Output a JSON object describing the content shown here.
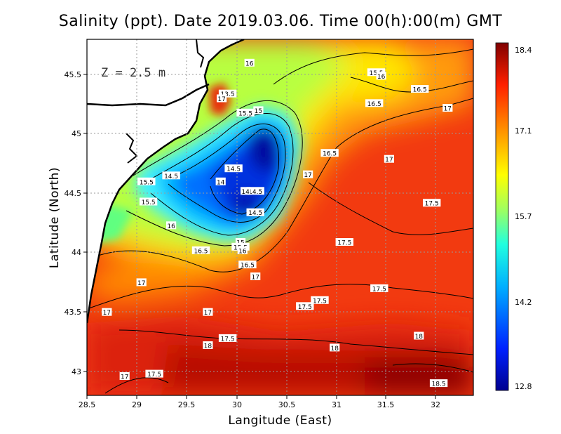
{
  "title": "Salinity (ppt). Date 2019.03.06. Time 00(h):00(m) GMT",
  "depth_label": "Z = 2.5 m",
  "chart_data": {
    "type": "heatmap",
    "title": "Salinity (ppt). Date 2019.03.06. Time 00(h):00(m) GMT",
    "xlabel": "Langitude (East)",
    "ylabel": "Latitude (North)",
    "xlim": [
      28.5,
      32.4
    ],
    "ylim": [
      42.8,
      45.8
    ],
    "x_ticks": [
      "28.5",
      "29",
      "29.5",
      "30",
      "30.5",
      "31",
      "31.5",
      "32"
    ],
    "y_ticks": [
      "43",
      "43.5",
      "44",
      "44.5",
      "45",
      "45.5"
    ],
    "colorbar": {
      "labels": [
        "18.4",
        "17.1",
        "15.7",
        "14.2",
        "12.8"
      ],
      "range": [
        12.8,
        18.4
      ]
    },
    "grid": true,
    "contour_labels": [
      {
        "lon": 29.1,
        "lat": 44.6,
        "value": "15.5"
      },
      {
        "lon": 29.35,
        "lat": 44.65,
        "value": "14.5"
      },
      {
        "lon": 29.85,
        "lat": 44.6,
        "value": "14"
      },
      {
        "lon": 29.98,
        "lat": 44.71,
        "value": "14.5"
      },
      {
        "lon": 30.2,
        "lat": 44.52,
        "value": "14.5"
      },
      {
        "lon": 30.2,
        "lat": 44.34,
        "value": "14.5"
      },
      {
        "lon": 30.1,
        "lat": 44.52,
        "value": "14"
      },
      {
        "lon": 29.12,
        "lat": 44.43,
        "value": "15.5"
      },
      {
        "lon": 29.35,
        "lat": 44.23,
        "value": "16"
      },
      {
        "lon": 30.05,
        "lat": 44.09,
        "value": "15"
      },
      {
        "lon": 30.05,
        "lat": 44.05,
        "value": "15.5"
      },
      {
        "lon": 30.07,
        "lat": 44.02,
        "value": "16"
      },
      {
        "lon": 29.65,
        "lat": 44.02,
        "value": "16.5"
      },
      {
        "lon": 30.12,
        "lat": 43.9,
        "value": "16.5"
      },
      {
        "lon": 30.2,
        "lat": 43.8,
        "value": "17"
      },
      {
        "lon": 29.05,
        "lat": 43.75,
        "value": "17"
      },
      {
        "lon": 28.7,
        "lat": 43.5,
        "value": "17"
      },
      {
        "lon": 29.72,
        "lat": 43.5,
        "value": "17"
      },
      {
        "lon": 29.92,
        "lat": 43.28,
        "value": "17.5"
      },
      {
        "lon": 29.72,
        "lat": 43.22,
        "value": "18"
      },
      {
        "lon": 29.18,
        "lat": 42.98,
        "value": "17.5"
      },
      {
        "lon": 28.88,
        "lat": 42.96,
        "value": "17"
      },
      {
        "lon": 30.14,
        "lat": 45.6,
        "value": "16"
      },
      {
        "lon": 29.92,
        "lat": 45.34,
        "value": "13.5"
      },
      {
        "lon": 29.86,
        "lat": 45.3,
        "value": "17"
      },
      {
        "lon": 30.1,
        "lat": 45.18,
        "value": "15.5"
      },
      {
        "lon": 30.23,
        "lat": 45.2,
        "value": "15"
      },
      {
        "lon": 31.42,
        "lat": 45.52,
        "value": "15.5"
      },
      {
        "lon": 31.47,
        "lat": 45.49,
        "value": "16"
      },
      {
        "lon": 31.86,
        "lat": 45.38,
        "value": "16.5"
      },
      {
        "lon": 31.4,
        "lat": 45.26,
        "value": "16.5"
      },
      {
        "lon": 32.14,
        "lat": 45.22,
        "value": "17"
      },
      {
        "lon": 30.95,
        "lat": 44.84,
        "value": "16.5"
      },
      {
        "lon": 31.55,
        "lat": 44.79,
        "value": "17"
      },
      {
        "lon": 30.73,
        "lat": 44.66,
        "value": "17"
      },
      {
        "lon": 31.98,
        "lat": 44.42,
        "value": "17.5"
      },
      {
        "lon": 31.1,
        "lat": 44.09,
        "value": "17.5"
      },
      {
        "lon": 31.45,
        "lat": 43.7,
        "value": "17.5"
      },
      {
        "lon": 30.85,
        "lat": 43.6,
        "value": "17.5"
      },
      {
        "lon": 30.7,
        "lat": 43.55,
        "value": "17.5"
      },
      {
        "lon": 31.85,
        "lat": 43.3,
        "value": "18"
      },
      {
        "lon": 31.0,
        "lat": 43.2,
        "value": "18"
      },
      {
        "lon": 32.05,
        "lat": 42.9,
        "value": "18.5"
      }
    ]
  }
}
